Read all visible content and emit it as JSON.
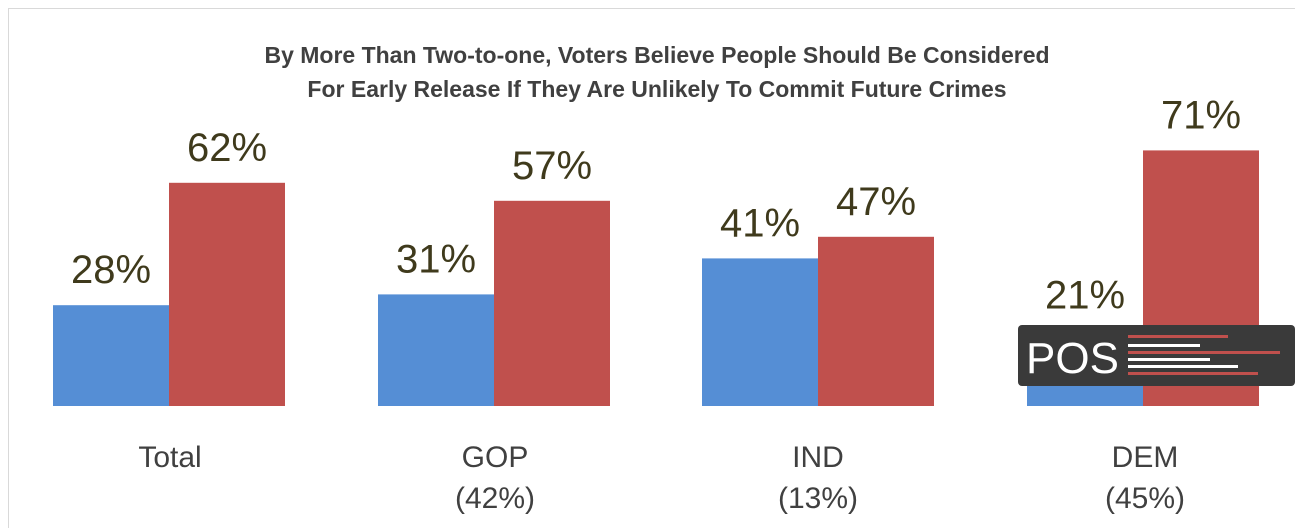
{
  "chart_data": {
    "type": "bar",
    "title_lines": [
      "By More Than Two-to-one, Voters Believe People Should Be Considered",
      "For Early Release If They Are Unlikely To Commit Future Crimes"
    ],
    "categories": [
      "Total",
      "GOP",
      "IND",
      "DEM"
    ],
    "category_sublabels": [
      "",
      "(42%)",
      "(13%)",
      "(45%)"
    ],
    "series": [
      {
        "values": [
          28,
          31,
          41,
          21
        ],
        "color": "#558ed5",
        "labels": [
          "28%",
          "31%",
          "41%",
          "21%"
        ]
      },
      {
        "values": [
          62,
          57,
          47,
          71
        ],
        "color": "#c0504d",
        "labels": [
          "62%",
          "57%",
          "47%",
          "71%"
        ]
      }
    ],
    "ylim": [
      0,
      80
    ],
    "grid": false,
    "legend": "none"
  },
  "logo": {
    "text": "POS",
    "bg_color": "#3a3a3a",
    "accent_color": "#c0504d"
  }
}
